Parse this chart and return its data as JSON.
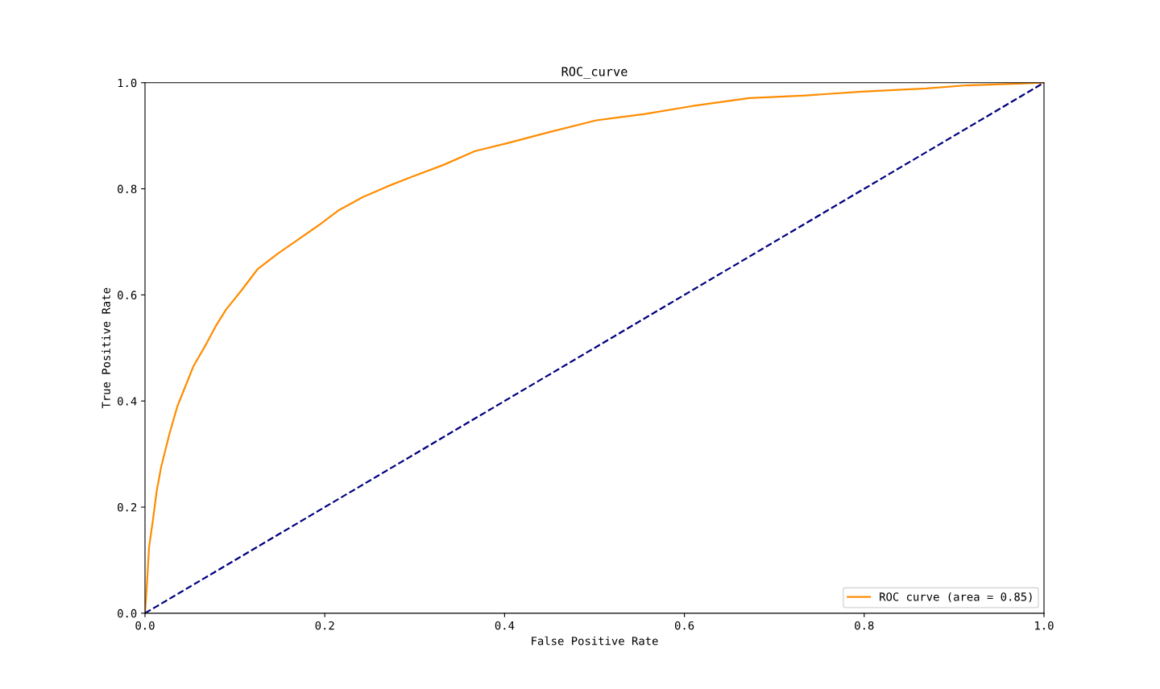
{
  "chart_data": {
    "type": "line",
    "title": "ROC_curve",
    "xlabel": "False Positive Rate",
    "ylabel": "True Positive Rate",
    "xlim": [
      0,
      1
    ],
    "ylim": [
      0,
      1
    ],
    "xticks": [
      {
        "value": 0,
        "label": "0.0"
      },
      0.2,
      0.4,
      0.6,
      0.8,
      {
        "value": 1,
        "label": "1.0"
      }
    ],
    "yticks": [
      {
        "value": 0,
        "label": "0.0"
      },
      0.2,
      0.4,
      0.6,
      0.8,
      {
        "value": 1,
        "label": "1.0"
      }
    ],
    "grid": false,
    "legend": "bottom right",
    "marker": "none",
    "series": [
      {
        "name": "ROC curve (area = 0.85)",
        "color": "#ff8c00",
        "line_style": "solid",
        "x": [
          0,
          0.002,
          0.0045,
          0.009,
          0.013,
          0.018,
          0.027,
          0.036,
          0.045,
          0.054,
          0.067,
          0.079,
          0.09,
          0.108,
          0.125,
          0.148,
          0.17,
          0.193,
          0.215,
          0.242,
          0.269,
          0.296,
          0.332,
          0.367,
          0.403,
          0.448,
          0.502,
          0.556,
          0.609,
          0.672,
          0.735,
          0.797,
          0.869,
          0.914,
          1
        ],
        "values": [
          0,
          0.05,
          0.124,
          0.178,
          0.23,
          0.276,
          0.337,
          0.39,
          0.428,
          0.466,
          0.504,
          0.542,
          0.572,
          0.61,
          0.648,
          0.678,
          0.704,
          0.731,
          0.759,
          0.784,
          0.804,
          0.822,
          0.845,
          0.871,
          0.886,
          0.906,
          0.929,
          0.941,
          0.956,
          0.971,
          0.976,
          0.983,
          0.989,
          0.995,
          1
        ]
      },
      {
        "color": "#000080",
        "line_style": "dashed",
        "x": [
          0,
          1
        ],
        "values": [
          0,
          1
        ]
      }
    ]
  }
}
